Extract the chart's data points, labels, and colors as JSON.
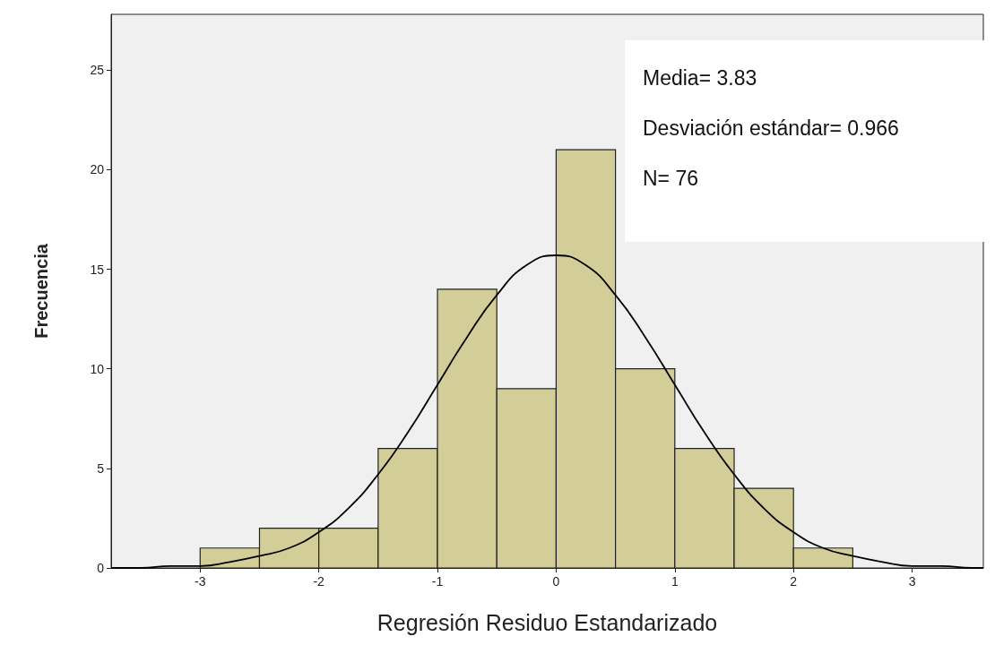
{
  "chart_data": {
    "type": "histogram",
    "xlabel": "Regresión Residuo Estandarizado",
    "ylabel": "Frecuencia",
    "bins": [
      -3,
      -2.5,
      -2,
      -1.5,
      -1,
      -0.5,
      0,
      0.5,
      1,
      1.5,
      2,
      2.5
    ],
    "values": [
      1,
      2,
      2,
      6,
      14,
      9,
      21,
      10,
      6,
      4,
      1
    ],
    "color": "#d3ce97",
    "series": [
      {
        "type": "line",
        "color": "#000000",
        "x": [
          -3.75,
          -3.5,
          -3.25,
          -3,
          -2.75,
          -2.5,
          -2.25,
          -2,
          -1.75,
          -1.5,
          -1.25,
          -1,
          -0.75,
          -0.5,
          -0.25,
          0,
          0.25,
          0.5,
          0.75,
          1,
          1.25,
          1.5,
          1.75,
          2,
          2.25,
          2.5,
          2.75,
          3,
          3.25,
          3.5,
          3.6
        ],
        "values": [
          0,
          0,
          0.1,
          0.1,
          0.3,
          0.6,
          1,
          1.8,
          3,
          4.7,
          6.8,
          9.2,
          11.6,
          13.7,
          15.2,
          15.7,
          15.2,
          13.7,
          11.6,
          9.2,
          6.8,
          4.7,
          3,
          1.8,
          1,
          0.6,
          0.3,
          0.1,
          0.1,
          0,
          0
        ]
      }
    ],
    "xlim": [
      -3.75,
      3.6
    ],
    "xticks": [
      -3,
      -2,
      -1,
      0,
      1,
      2,
      3
    ],
    "ylim": [
      0,
      27.8
    ],
    "yticks": [
      0,
      5,
      10,
      15,
      20,
      25
    ],
    "grid": false,
    "annotations": [
      "Media= 3.83",
      "Desviación estándar= 0.966",
      "N= 76"
    ]
  }
}
